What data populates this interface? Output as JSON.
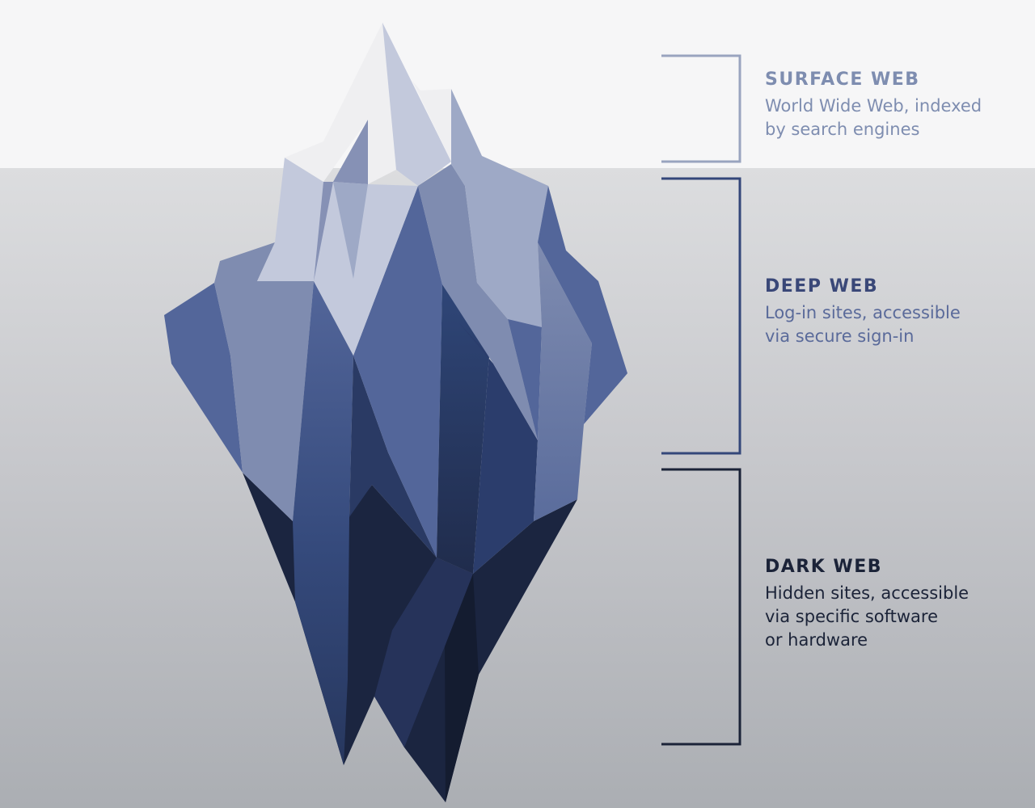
{
  "layers": [
    {
      "id": "surface",
      "title": "SURFACE WEB",
      "description": "World Wide Web, indexed\nby search engines",
      "title_color": "#7e8db0",
      "text_color": "#7e8db0",
      "bracket_color": "#99a4bf"
    },
    {
      "id": "deep",
      "title": "DEEP WEB",
      "description": "Log-in sites, accessible\nvia secure sign-in",
      "title_color": "#3a4878",
      "text_color": "#5a6a9a",
      "bracket_color": "#34477a"
    },
    {
      "id": "dark",
      "title": "DARK WEB",
      "description": "Hidden sites, accessible\nvia specific software\nor hardware",
      "title_color": "#1b2338",
      "text_color": "#1b2338",
      "bracket_color": "#1b2338"
    }
  ],
  "colors": {
    "sky": "#f6f6f7",
    "ice_light": "#c3c9dc",
    "ice_mid": "#7f8cb0",
    "ice_blue": "#53669a",
    "ice_deep": "#354d80",
    "ice_dark": "#1b2540"
  }
}
